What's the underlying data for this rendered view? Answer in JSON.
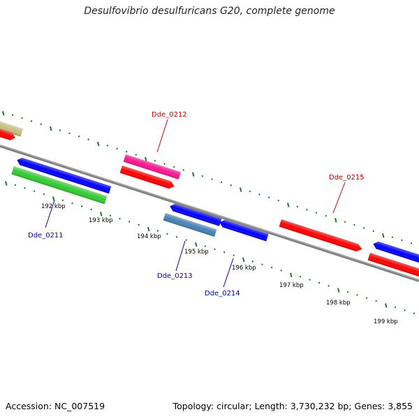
{
  "title": "Desulfovibrio desulfuricans G20, complete genome",
  "footer": {
    "accession": "Accession: NC_007519",
    "stats": "Topology: circular; Length: 3,730,232 bp; Genes: 3,855"
  },
  "colors": {
    "backbone": "#808080",
    "ticks": "#1f7a1f",
    "upper_label": "#cc0000",
    "lower_label": "#0000cc"
  },
  "ticks": [
    "192 kbp",
    "193 kbp",
    "194 kbp",
    "195 kbp",
    "196 kbp",
    "197 kbp",
    "198 kbp",
    "199 kbp"
  ],
  "gene_labels": {
    "dde_0211": "Dde_0211",
    "dde_0212": "Dde_0212",
    "dde_0213": "Dde_0213",
    "dde_0214": "Dde_0214",
    "dde_0215": "Dde_0215"
  },
  "features": [
    {
      "name": "gene-olive-left",
      "color": "#c8c080",
      "strand": "plus-outer"
    },
    {
      "name": "gene-red-left",
      "color": "#ff0000",
      "strand": "plus"
    },
    {
      "name": "gene-blue-dde-0210",
      "color": "#0000ff",
      "strand": "minus"
    },
    {
      "name": "gene-green-dde-0211",
      "color": "#33cc33",
      "strand": "minus-outer"
    },
    {
      "name": "gene-pink-dde-0212",
      "color": "#ff1493",
      "strand": "plus-outer"
    },
    {
      "name": "gene-red-dde-0212",
      "color": "#ff0000",
      "strand": "plus"
    },
    {
      "name": "gene-blue-dde-0213",
      "color": "#0000ff",
      "strand": "minus"
    },
    {
      "name": "gene-steelblue-dde-0213",
      "color": "#4682b4",
      "strand": "minus-outer"
    },
    {
      "name": "gene-blue-dde-0214",
      "color": "#0000ff",
      "strand": "minus"
    },
    {
      "name": "gene-red-dde-0215",
      "color": "#ff0000",
      "strand": "plus"
    },
    {
      "name": "gene-blue-right",
      "color": "#0000ff",
      "strand": "minus"
    },
    {
      "name": "gene-red-right",
      "color": "#ff0000",
      "strand": "plus"
    }
  ]
}
